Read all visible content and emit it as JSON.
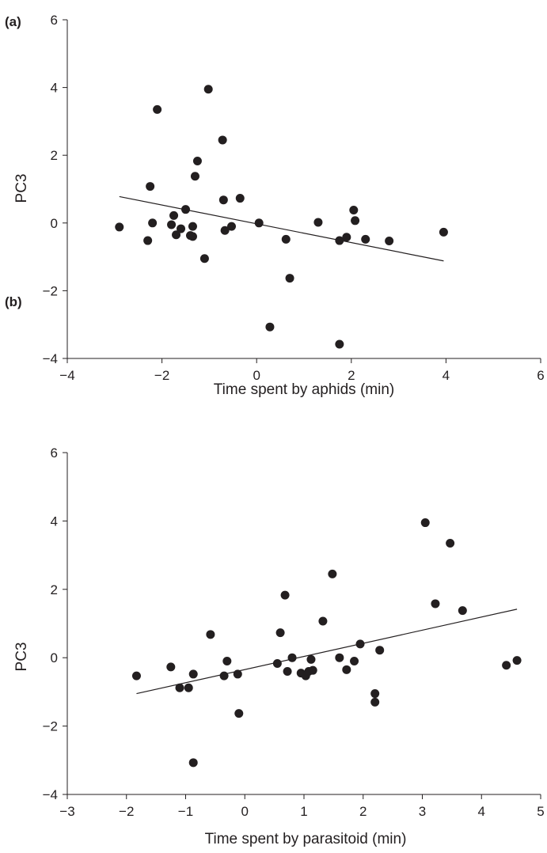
{
  "chart_data": [
    {
      "type": "scatter",
      "panel_label": "(a)",
      "xlabel": "Time spent by aphids (min)",
      "ylabel": "PC3",
      "xlim": [
        -4,
        6
      ],
      "ylim": [
        -4,
        6
      ],
      "xticks": [
        -4,
        -2,
        0,
        2,
        4,
        6
      ],
      "yticks": [
        -4,
        -2,
        0,
        2,
        4,
        6
      ],
      "xtick_labels": [
        "−4",
        "−2",
        "0",
        "2",
        "4",
        "6"
      ],
      "ytick_labels": [
        "−4",
        "−2",
        "0",
        "2",
        "4",
        "6"
      ],
      "grid": false,
      "point_color": "#231f20",
      "points": [
        [
          -2.9,
          -0.12
        ],
        [
          -2.3,
          -0.52
        ],
        [
          -2.25,
          1.08
        ],
        [
          -2.2,
          0.0
        ],
        [
          -2.1,
          3.35
        ],
        [
          -1.8,
          -0.05
        ],
        [
          -1.75,
          0.22
        ],
        [
          -1.7,
          -0.35
        ],
        [
          -1.6,
          -0.17
        ],
        [
          -1.5,
          0.4
        ],
        [
          -1.4,
          -0.37
        ],
        [
          -1.35,
          -0.1
        ],
        [
          -1.35,
          -0.4
        ],
        [
          -1.3,
          1.38
        ],
        [
          -1.25,
          1.83
        ],
        [
          -1.1,
          -1.05
        ],
        [
          -1.02,
          3.95
        ],
        [
          -0.72,
          2.45
        ],
        [
          -0.7,
          0.68
        ],
        [
          -0.67,
          -0.22
        ],
        [
          -0.53,
          -0.1
        ],
        [
          -0.35,
          0.73
        ],
        [
          0.05,
          0.0
        ],
        [
          0.28,
          -3.07
        ],
        [
          0.62,
          -0.48
        ],
        [
          0.7,
          -1.63
        ],
        [
          1.3,
          0.02
        ],
        [
          1.75,
          -0.52
        ],
        [
          1.75,
          -3.58
        ],
        [
          1.9,
          -0.42
        ],
        [
          2.05,
          0.38
        ],
        [
          2.08,
          0.07
        ],
        [
          2.3,
          -0.48
        ],
        [
          2.8,
          -0.53
        ],
        [
          3.95,
          -0.27
        ]
      ],
      "trend_line": {
        "x": [
          -2.9,
          3.95
        ],
        "y": [
          0.78,
          -1.12
        ]
      }
    },
    {
      "type": "scatter",
      "panel_label": "(b)",
      "xlabel": "Time spent by parasitoid (min)",
      "ylabel": "PC3",
      "xlim": [
        -3,
        5
      ],
      "ylim": [
        -4,
        6
      ],
      "xticks": [
        -3,
        -2,
        -1,
        0,
        1,
        2,
        3,
        4,
        5
      ],
      "yticks": [
        -4,
        -2,
        0,
        2,
        4,
        6
      ],
      "xtick_labels": [
        "−3",
        "−2",
        "−1",
        "0",
        "1",
        "2",
        "3",
        "4",
        "5"
      ],
      "ytick_labels": [
        "−4",
        "−2",
        "0",
        "2",
        "4",
        "6"
      ],
      "grid": false,
      "point_color": "#231f20",
      "points": [
        [
          -1.83,
          -0.53
        ],
        [
          -1.25,
          -0.27
        ],
        [
          -1.1,
          -0.88
        ],
        [
          -0.95,
          -0.88
        ],
        [
          -0.87,
          -0.48
        ],
        [
          -0.87,
          -3.07
        ],
        [
          -0.58,
          0.68
        ],
        [
          -0.35,
          -0.53
        ],
        [
          -0.3,
          -0.1
        ],
        [
          -0.12,
          -0.48
        ],
        [
          -0.1,
          -1.63
        ],
        [
          0.55,
          -0.17
        ],
        [
          0.6,
          0.73
        ],
        [
          0.68,
          1.83
        ],
        [
          0.72,
          -0.4
        ],
        [
          0.8,
          0.0
        ],
        [
          0.95,
          -0.45
        ],
        [
          1.03,
          -0.53
        ],
        [
          1.08,
          -0.4
        ],
        [
          1.12,
          -0.05
        ],
        [
          1.15,
          -0.37
        ],
        [
          1.32,
          1.07
        ],
        [
          1.48,
          2.45
        ],
        [
          1.6,
          0.0
        ],
        [
          1.72,
          -0.35
        ],
        [
          1.85,
          -0.1
        ],
        [
          1.95,
          0.4
        ],
        [
          2.2,
          -1.05
        ],
        [
          2.2,
          -1.3
        ],
        [
          2.28,
          0.22
        ],
        [
          3.05,
          3.95
        ],
        [
          3.22,
          1.58
        ],
        [
          3.47,
          3.35
        ],
        [
          3.68,
          1.38
        ],
        [
          4.42,
          -0.22
        ],
        [
          4.6,
          -0.08
        ]
      ],
      "trend_line": {
        "x": [
          -1.83,
          4.6
        ],
        "y": [
          -1.05,
          1.42
        ]
      }
    }
  ]
}
